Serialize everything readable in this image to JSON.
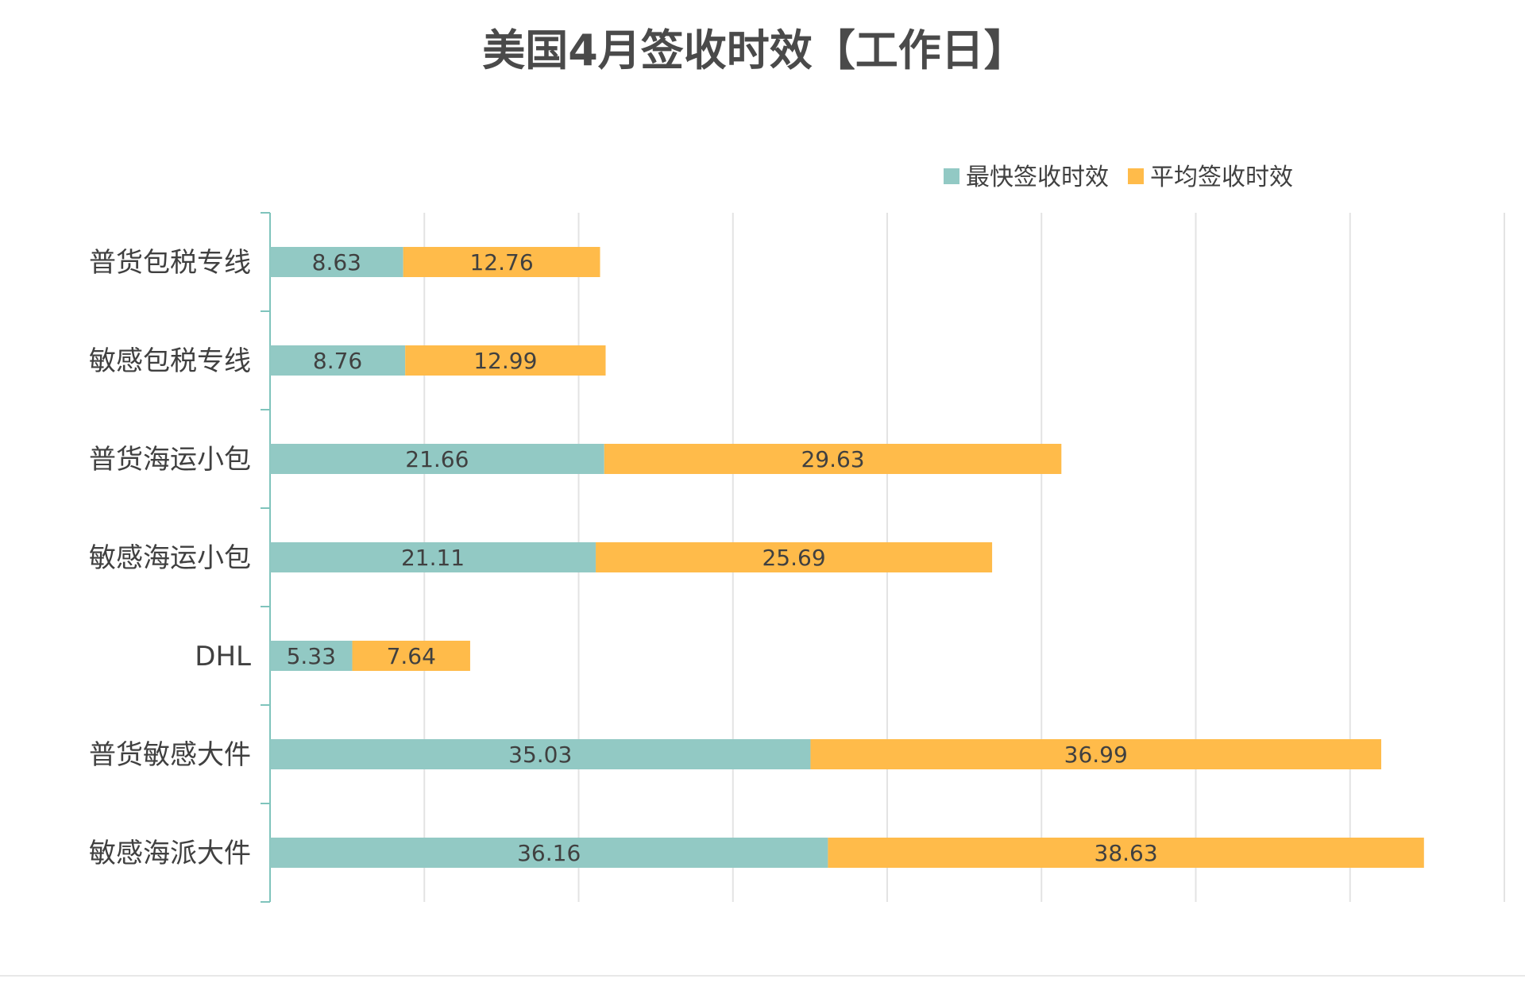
{
  "chart_data": {
    "type": "bar",
    "orientation": "horizontal",
    "stacked": true,
    "title": "美国4月签收时效【工作日】",
    "categories": [
      "普货包税专线",
      "敏感包税专线",
      "普货海运小包",
      "敏感海运小包",
      "DHL",
      "普货敏感大件",
      "敏感海派大件"
    ],
    "series": [
      {
        "name": "最快签收时效",
        "color": "#92c9c4",
        "values": [
          8.63,
          8.76,
          21.66,
          21.11,
          5.33,
          35.03,
          36.16
        ],
        "labels": [
          "8.63",
          "8.76",
          "21.66",
          "21.11",
          "5.33",
          "35.03",
          "36.16"
        ]
      },
      {
        "name": "平均签收时效",
        "color": "#ffbb4a",
        "values": [
          12.76,
          12.99,
          29.63,
          25.69,
          7.64,
          36.99,
          38.63
        ],
        "labels": [
          "12.76",
          "12.99",
          "29.63",
          "25.69",
          "7.64",
          "36.99",
          "38.63"
        ]
      }
    ],
    "xlim": [
      0,
      80
    ],
    "grid": true,
    "legend": "top-right",
    "axis_color": "#7fc4bc",
    "grid_color": "#e3e3e3",
    "text_color": "#404040",
    "title_color": "#4a4a4a"
  }
}
